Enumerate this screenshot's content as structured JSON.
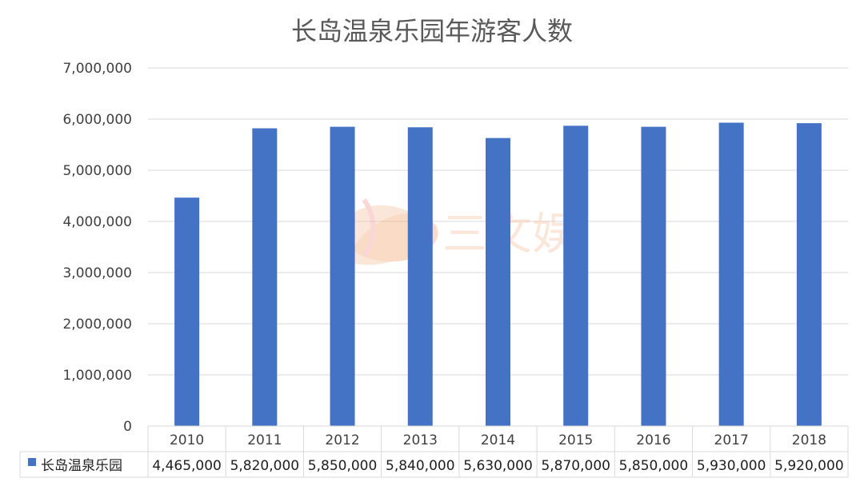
{
  "chart_data": {
    "type": "bar",
    "title": "长岛温泉乐园年游客人数",
    "xlabel": "",
    "ylabel": "",
    "ylim": [
      0,
      7000000
    ],
    "yticks": [
      0,
      1000000,
      2000000,
      3000000,
      4000000,
      5000000,
      6000000,
      7000000
    ],
    "ytick_labels": [
      "0",
      "1,000,000",
      "2,000,000",
      "3,000,000",
      "4,000,000",
      "5,000,000",
      "6,000,000",
      "7,000,000"
    ],
    "categories": [
      "2010",
      "2011",
      "2012",
      "2013",
      "2014",
      "2015",
      "2016",
      "2017",
      "2018"
    ],
    "series": [
      {
        "name": "长岛温泉乐园",
        "values": [
          4465000,
          5820000,
          5850000,
          5840000,
          5630000,
          5870000,
          5850000,
          5930000,
          5920000
        ],
        "value_labels": [
          "4,465,000",
          "5,820,000",
          "5,850,000",
          "5,840,000",
          "5,630,000",
          "5,870,000",
          "5,850,000",
          "5,930,000",
          "5,920,000"
        ]
      }
    ],
    "grid": true,
    "legend": "bottom-left (data table)",
    "data_table": true,
    "colors": {
      "bar": "#4472C4",
      "grid": "#D9D9D9",
      "text": "#404040",
      "title": "#595959"
    }
  },
  "watermark": {
    "text": "三文娱",
    "colors": [
      "#F4B183",
      "#F8CBAD",
      "#F4A6A6"
    ]
  }
}
